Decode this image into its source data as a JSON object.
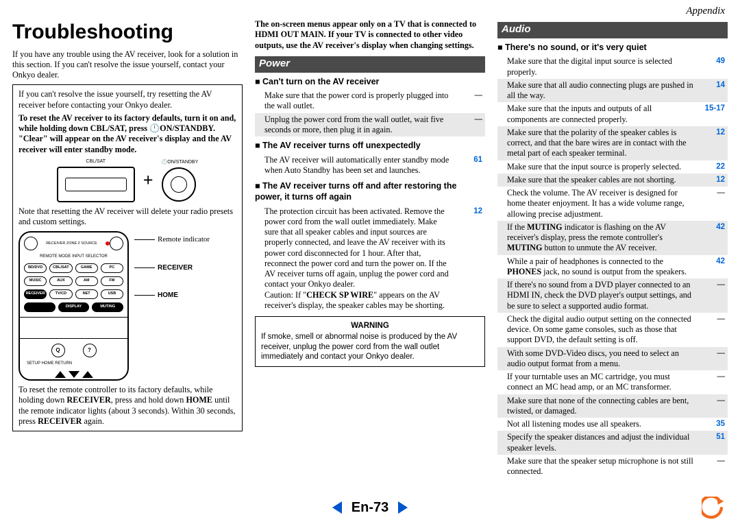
{
  "appendix_label": "Appendix",
  "page_number": "En-73",
  "h1": "Troubleshooting",
  "intro": "If you have any trouble using the AV receiver, look for a solution in this section. If you can't resolve the issue yourself, contact your Onkyo dealer.",
  "reset_box": {
    "p1": "If you can't resolve the issue yourself, try resetting the AV receiver before contacting your Onkyo dealer.",
    "p2_html": "<b>To reset the AV receiver to its factory defaults, turn it on and, while holding down CBL/SAT, press 🕛ON/STANDBY. \"Clear\" will appear on the AV receiver's display and the AV receiver will enter standby mode.</b>",
    "btn_left_label": "CBL/SAT",
    "btn_right_label": "🕛ON/STANDBY",
    "p3": "Note that resetting the AV receiver will delete your radio presets and custom settings.",
    "remote_labels": {
      "indicator": "Remote indicator",
      "receiver": "RECEIVER",
      "home": "HOME"
    },
    "remote_rows": {
      "top": [
        "RECEIVER",
        "ZONE 2",
        "",
        "SOURCE"
      ],
      "sel_label": "REMOTE MODE  INPUT SELECTOR",
      "r1": [
        "BD/DVD",
        "CBL/SAT",
        "GAME",
        "PC"
      ],
      "r2": [
        "MUSIC",
        "AUX",
        "AM",
        "FM"
      ],
      "r3": [
        "RECEIVER",
        "TV/CD",
        "NET",
        "USB"
      ],
      "r4": [
        "",
        "DISPLAY",
        "MUTING"
      ],
      "q": [
        "Q",
        "?"
      ],
      "below": [
        "SETUP",
        "HOME",
        "RETURN"
      ]
    },
    "p4_html": "To reset the remote controller to its factory defaults, while holding down <b>RECEIVER</b>, press and hold down <b>HOME</b> until the remote indicator lights (about 3 seconds). Within 30 seconds, press <b>RECEIVER</b> again."
  },
  "col2_lead_html": "<b>The on-screen menus appear only on a TV that is connected to HDMI OUT MAIN. If your TV is connected to other video outputs, use the AV receiver's display when changing settings.</b>",
  "power_header": "Power",
  "power_sections": [
    {
      "title": "Can't turn on the AV receiver",
      "items": [
        {
          "text": "Make sure that the power cord is properly plugged into the wall outlet.",
          "ref": "—",
          "shade": false
        },
        {
          "text": "Unplug the power cord from the wall outlet, wait five seconds or more, then plug it in again.",
          "ref": "—",
          "shade": true
        }
      ]
    },
    {
      "title": "The AV receiver turns off unexpectedly",
      "items": [
        {
          "text": "The AV receiver will automatically enter standby mode when Auto Standby has been set and launches.",
          "ref": "61",
          "shade": false
        }
      ]
    },
    {
      "title": "The AV receiver turns off and after restoring the power, it turns off again",
      "items": [
        {
          "text_html": "The protection circuit has been activated. Remove the power cord from the wall outlet immediately. Make sure that all speaker cables and input sources are properly connected, and leave the AV receiver with its power cord disconnected for 1 hour. After that, reconnect the power cord and turn the power on. If the AV receiver turns off again, unplug the power cord and contact your Onkyo dealer.<br>Caution: If \"<b>CHECK SP WIRE</b>\" appears on the AV receiver's display, the speaker cables may be shorting.",
          "ref": "12",
          "shade": false
        }
      ]
    }
  ],
  "warning_box": {
    "title": "WARNING",
    "text": "If smoke, smell or abnormal noise is produced by the AV receiver, unplug the power cord from the wall outlet immediately and contact your Onkyo dealer."
  },
  "audio_header": "Audio",
  "audio_section_title": "There's no sound, or it's very quiet",
  "audio_items": [
    {
      "text": "Make sure that the digital input source is selected properly.",
      "ref": "49",
      "shade": false
    },
    {
      "text": "Make sure that all audio connecting plugs are pushed in all the way.",
      "ref": "14",
      "shade": true
    },
    {
      "text": "Make sure that the inputs and outputs of all components are connected properly.",
      "ref": "15-17",
      "shade": false
    },
    {
      "text": "Make sure that the polarity of the speaker cables is correct, and that the bare wires are in contact with the metal part of each speaker terminal.",
      "ref": "12",
      "shade": true
    },
    {
      "text": "Make sure that the input source is properly selected.",
      "ref": "22",
      "shade": false
    },
    {
      "text": "Make sure that the speaker cables are not shorting.",
      "ref": "12",
      "shade": true
    },
    {
      "text": "Check the volume. The AV receiver is designed for home theater enjoyment. It has a wide volume range, allowing precise adjustment.",
      "ref": "—",
      "shade": false
    },
    {
      "text_html": "If the <b>MUTING</b> indicator is flashing on the AV receiver's display, press the remote controller's <b>MUTING</b> button to unmute the AV receiver.",
      "ref": "42",
      "shade": true
    },
    {
      "text_html": "While a pair of headphones is connected to the <b>PHONES</b> jack, no sound is output from the speakers.",
      "ref": "42",
      "shade": false
    },
    {
      "text": "If there's no sound from a DVD player connected to an HDMI IN, check the DVD player's output settings, and be sure to select a supported audio format.",
      "ref": "—",
      "shade": true
    },
    {
      "text": "Check the digital audio output setting on the connected device. On some game consoles, such as those that support DVD, the default setting is off.",
      "ref": "—",
      "shade": false
    },
    {
      "text": "With some DVD-Video discs, you need to select an audio output format from a menu.",
      "ref": "—",
      "shade": true
    },
    {
      "text": "If your turntable uses an MC cartridge, you must connect an MC head amp, or an MC transformer.",
      "ref": "—",
      "shade": false
    },
    {
      "text": "Make sure that none of the connecting cables are bent, twisted, or damaged.",
      "ref": "—",
      "shade": true
    },
    {
      "text": "Not all listening modes use all speakers.",
      "ref": "35",
      "shade": false
    },
    {
      "text": "Specify the speaker distances and adjust the individual speaker levels.",
      "ref": "51",
      "shade": true
    },
    {
      "text": "Make sure that the speaker setup microphone is not still connected.",
      "ref": "—",
      "shade": false
    }
  ],
  "colors": {
    "bar_bg": "#4a4a4a",
    "ref_link": "#0066d6",
    "nav_triangle": "#0055cc",
    "back_arrow": "#f26a1b",
    "shade_row": "#e8e8e8"
  }
}
